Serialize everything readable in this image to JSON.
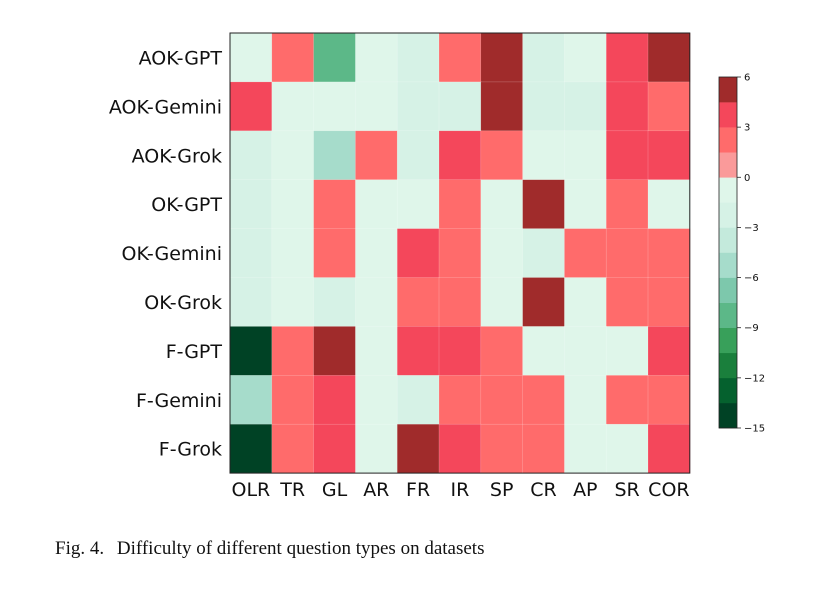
{
  "chart_data": {
    "type": "heatmap",
    "rows": [
      "AOK-GPT",
      "AOK-Gemini",
      "AOK-Grok",
      "OK-GPT",
      "OK-Gemini",
      "OK-Grok",
      "F-GPT",
      "F-Gemini",
      "F-Grok"
    ],
    "columns": [
      "OLR",
      "TR",
      "GL",
      "AR",
      "FR",
      "IR",
      "SP",
      "CR",
      "AP",
      "SR",
      "COR"
    ],
    "values": [
      [
        -1,
        2,
        -8,
        -1,
        -2,
        2,
        6,
        -3,
        -1,
        4,
        6
      ],
      [
        4,
        -1,
        -1,
        -1,
        -3,
        -2,
        6,
        -2,
        -2,
        3,
        2
      ],
      [
        -2,
        -1,
        -5,
        2,
        -2,
        4,
        2,
        -1,
        -1,
        4,
        3
      ],
      [
        -3,
        -1,
        2,
        -1,
        -1,
        2,
        -1,
        6,
        -1,
        2,
        -1
      ],
      [
        -2,
        -1,
        2,
        -1,
        3,
        2,
        -1,
        -2,
        2,
        2,
        2
      ],
      [
        -2,
        -1,
        -3,
        -1,
        2,
        2,
        -1,
        6,
        -1,
        2,
        2
      ],
      [
        -15,
        2,
        6,
        -1,
        4,
        3,
        2,
        -1,
        -1,
        -1,
        3
      ],
      [
        -5,
        2,
        4,
        -1,
        -2,
        2,
        2,
        2,
        -1,
        2,
        2
      ],
      [
        -15,
        2,
        4,
        -1,
        6,
        3,
        2,
        2,
        -1,
        -1,
        3
      ]
    ],
    "colorbar": {
      "ticks": [
        "6",
        "3",
        "0",
        "−3",
        "−6",
        "−9",
        "−12",
        "−15"
      ],
      "range": [
        -15,
        6
      ],
      "colors": [
        "#004225",
        "#05612e",
        "#1a7f3c",
        "#38a05a",
        "#5cb888",
        "#7dc8ac",
        "#a6dccb",
        "#c4eadc",
        "#d6f2e6",
        "#dff6ea",
        "#fa9a9a",
        "#ff6b6b",
        "#f4475b",
        "#a02b2b"
      ]
    }
  },
  "caption": {
    "label": "Fig. 4.",
    "text": "Difficulty of different question types on datasets"
  }
}
